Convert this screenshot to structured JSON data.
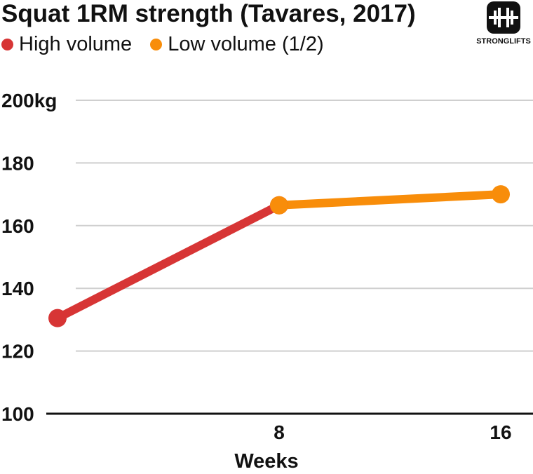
{
  "chart_data": {
    "type": "line",
    "title": "Squat 1RM strength (Tavares, 2017)",
    "xlabel": "Weeks",
    "ylabel": "",
    "x_ticks": [
      "8",
      "16"
    ],
    "y_ticks": [
      "200kg",
      "180",
      "160",
      "140",
      "120",
      "100"
    ],
    "ylim": [
      100,
      200
    ],
    "xlim": [
      0,
      16
    ],
    "grid": true,
    "legend_position": "top-left",
    "series": [
      {
        "name": "High volume",
        "color": "#d73535",
        "points": [
          [
            0,
            130.5
          ],
          [
            8,
            166.5
          ]
        ]
      },
      {
        "name": "Low volume (1/2)",
        "color": "#f88d0a",
        "points": [
          [
            8,
            166.5
          ],
          [
            16,
            170
          ]
        ]
      }
    ]
  },
  "brand": {
    "name": "STRONGLIFTS",
    "icon": "barbell-icon"
  }
}
